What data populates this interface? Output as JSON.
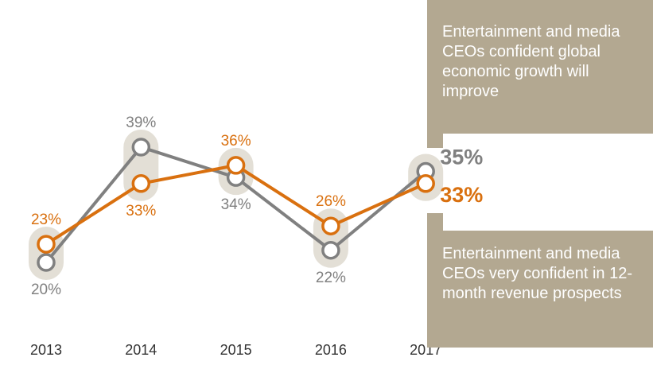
{
  "chart_data": {
    "type": "line",
    "categories": [
      "2013",
      "2014",
      "2015",
      "2016",
      "2017"
    ],
    "series": [
      {
        "name": "Entertainment and media CEOs confident global economic growth will improve",
        "color": "#808080",
        "values": [
          20,
          39,
          34,
          22,
          35
        ],
        "value_labels": [
          "20%",
          "39%",
          "34%",
          "22%",
          "35%"
        ]
      },
      {
        "name": "Entertainment and media CEOs very confident in 12-month revenue prospects",
        "color": "#d9700f",
        "values": [
          23,
          33,
          36,
          26,
          33
        ],
        "value_labels": [
          "23%",
          "33%",
          "36%",
          "26%",
          "33%"
        ]
      }
    ]
  }
}
